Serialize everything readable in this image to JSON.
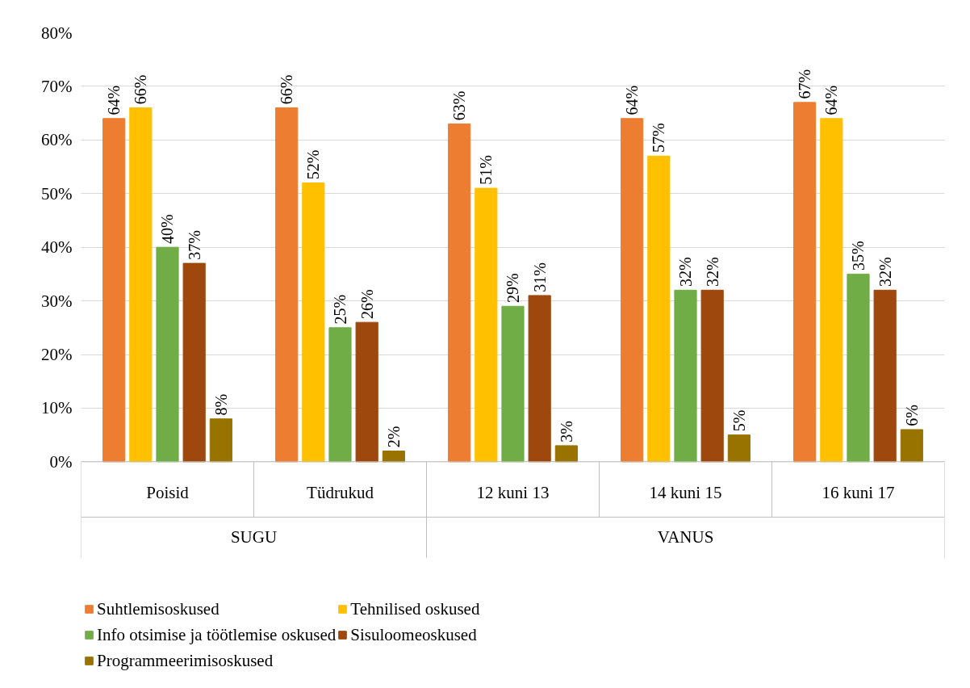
{
  "chart_data": {
    "type": "bar",
    "categories": [
      "Poisid",
      "Tüdrukud",
      "12 kuni 13",
      "14 kuni 15",
      "16 kuni 17"
    ],
    "series": [
      {
        "name": "Suhtlemisoskused",
        "color": "#ed7d31",
        "values": [
          64,
          66,
          63,
          64,
          67
        ],
        "value_labels": [
          "64%",
          "66%",
          "63%",
          "64%",
          "67%"
        ]
      },
      {
        "name": "Tehnilised oskused",
        "color": "#ffc000",
        "values": [
          66,
          52,
          51,
          57,
          64
        ],
        "value_labels": [
          "66%",
          "52%",
          "51%",
          "57%",
          "64%"
        ]
      },
      {
        "name": "Info otsimise ja töötlemise oskused",
        "color": "#70ad47",
        "values": [
          40,
          25,
          29,
          32,
          35
        ],
        "value_labels": [
          "40%",
          "25%",
          "29%",
          "32%",
          "35%"
        ]
      },
      {
        "name": "Sisuloomeoskused",
        "color": "#9e480e",
        "values": [
          37,
          26,
          31,
          32,
          32
        ],
        "value_labels": [
          "37%",
          "26%",
          "31%",
          "32%",
          "32%"
        ]
      },
      {
        "name": "Programmeerimisoskused",
        "color": "#997300",
        "values": [
          8,
          2,
          3,
          5,
          6
        ],
        "value_labels": [
          "8%",
          "2%",
          "3%",
          "5%",
          "6%"
        ]
      }
    ],
    "ylim": [
      0,
      80
    ],
    "yticks": [
      {
        "value": 0,
        "label": "0%"
      },
      {
        "value": 10,
        "label": "10%"
      },
      {
        "value": 20,
        "label": "20%"
      },
      {
        "value": 30,
        "label": "30%"
      },
      {
        "value": 40,
        "label": "40%"
      },
      {
        "value": 50,
        "label": "50%"
      },
      {
        "value": 60,
        "label": "60%"
      },
      {
        "value": 70,
        "label": "70%"
      },
      {
        "value": 80,
        "label": "80%"
      }
    ],
    "grid": "y",
    "legend": "bottom",
    "annotations": [
      "SUGU",
      "VANUS"
    ]
  }
}
